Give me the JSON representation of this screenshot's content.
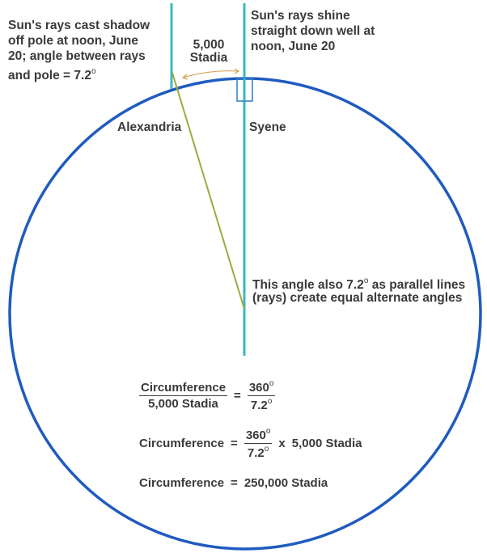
{
  "labels": {
    "alexandria_note": [
      "Sun's rays cast shadow",
      "off pole at noon, June",
      "20; angle between rays",
      "and pole = 7.2"
    ],
    "syene_note": [
      "Sun's rays shine",
      "straight down well at",
      "noon, June 20"
    ],
    "distance": [
      "5,000",
      "Stadia"
    ],
    "alexandria": "Alexandria",
    "syene": "Syene",
    "angle_note": [
      "This angle also 7.2",
      "as parallel lines",
      "(rays) create equal alternate angles"
    ],
    "degree": "o"
  },
  "equations": {
    "eq1": {
      "num": "Circumference",
      "den": "5,000 Stadia",
      "eq": "=",
      "rnum": "360",
      "rden": "7.2"
    },
    "eq2": {
      "lhs": "Circumference",
      "eq": "=",
      "rnum": "360",
      "rden": "7.2",
      "times": "x",
      "rhs": "5,000 Stadia"
    },
    "eq3": {
      "lhs": "Circumference",
      "eq": "=",
      "rhs": "250,000 Stadia"
    }
  },
  "colors": {
    "earth": "#1f5bbf",
    "rays": "#3bb8bf",
    "shadow_line": "#a0aa3c",
    "arc": "#d9a25a",
    "text": "#3a3a3a"
  }
}
